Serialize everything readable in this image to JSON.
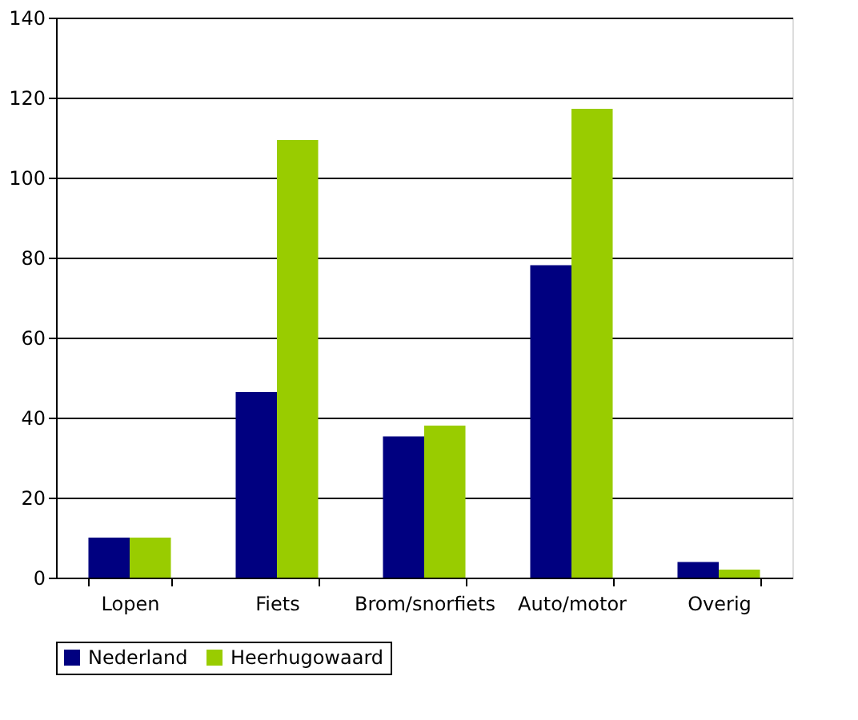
{
  "chart_data": {
    "type": "bar",
    "categories": [
      "Lopen",
      "Fiets",
      "Brom/snorfiets",
      "Auto/motor",
      "Overig"
    ],
    "series": [
      {
        "name": "Nederland",
        "color": "#000080",
        "values": [
          10,
          46.4,
          35.3,
          78.1,
          3.9
        ]
      },
      {
        "name": "Heerhugowaard",
        "color": "#99cc00",
        "values": [
          10,
          109.4,
          38,
          117.2,
          2
        ]
      }
    ],
    "ylim": [
      0,
      140
    ],
    "yticks": [
      0,
      20,
      40,
      60,
      80,
      100,
      120,
      140
    ],
    "grid": "y",
    "legend": "bottom"
  }
}
